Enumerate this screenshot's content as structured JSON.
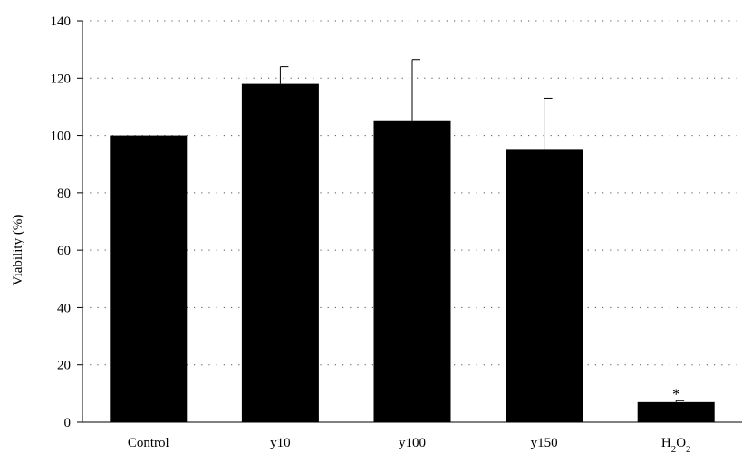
{
  "chart_data": {
    "type": "bar",
    "ylabel": "Viability (%)",
    "ylim": [
      0,
      140
    ],
    "yticks": [
      0,
      20,
      40,
      60,
      80,
      100,
      120,
      140
    ],
    "grid": "horizontal dotted",
    "categories": [
      "Control",
      "y10",
      "y100",
      "y150",
      "H2O2"
    ],
    "values": [
      100,
      118,
      105,
      95,
      7
    ],
    "error_upper": [
      0,
      6,
      21.5,
      18,
      0.5
    ],
    "annotations": [
      {
        "category": "H2O2",
        "text": "*"
      }
    ],
    "bar_color": "#000000"
  }
}
